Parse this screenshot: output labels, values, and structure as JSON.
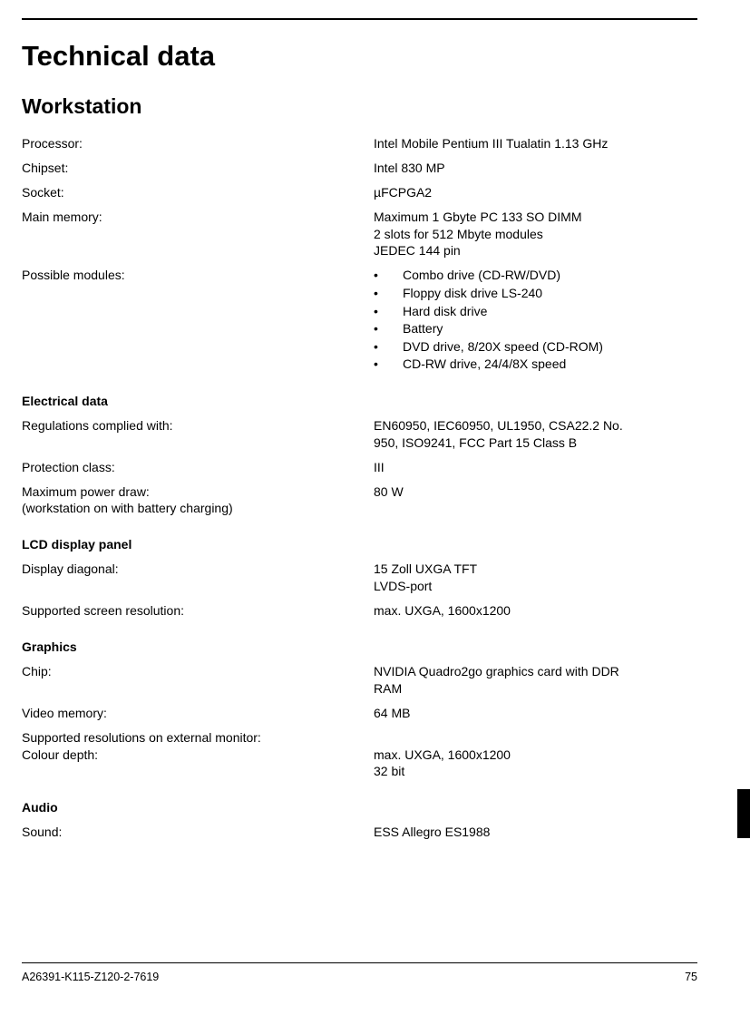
{
  "title": "Technical data",
  "subtitle": "Workstation",
  "workstation": {
    "processor": {
      "label": "Processor:",
      "value": "Intel Mobile Pentium III Tualatin 1.13 GHz"
    },
    "chipset": {
      "label": "Chipset:",
      "value": "Intel 830 MP"
    },
    "socket": {
      "label": "Socket:",
      "value": "µFCPGA2"
    },
    "main_memory": {
      "label": "Main memory:",
      "line1": "Maximum 1 Gbyte PC 133 SO DIMM",
      "line2": "2 slots for 512 Mbyte modules",
      "line3": "JEDEC 144 pin"
    },
    "possible_modules": {
      "label": "Possible modules:",
      "items": [
        "Combo drive (CD-RW/DVD)",
        "Floppy disk drive LS-240",
        "Hard disk drive",
        "Battery",
        "DVD drive, 8/20X speed (CD-ROM)",
        "CD-RW drive, 24/4/8X speed"
      ]
    }
  },
  "electrical": {
    "heading": "Electrical data",
    "regulations": {
      "label": "Regulations complied with:",
      "line1": "EN60950, IEC60950, UL1950, CSA22.2 No.",
      "line2": "950, ISO9241, FCC Part 15 Class B"
    },
    "protection": {
      "label": "Protection class:",
      "value": "III"
    },
    "power": {
      "label1": "Maximum power draw:",
      "label2": "(workstation on with battery charging)",
      "value": "80 W"
    }
  },
  "lcd": {
    "heading": "LCD display panel",
    "diagonal": {
      "label": "Display diagonal:",
      "line1": "15 Zoll UXGA TFT",
      "line2": "LVDS-port"
    },
    "resolution": {
      "label": "Supported screen resolution:",
      "value": "max. UXGA, 1600x1200"
    }
  },
  "graphics": {
    "heading": "Graphics",
    "chip": {
      "label": "Chip:",
      "line1": "NVIDIA Quadro2go graphics card with DDR",
      "line2": "RAM"
    },
    "vmem": {
      "label": "Video memory:",
      "value": "64 MB"
    },
    "ext": {
      "label1": "Supported resolutions on external monitor:",
      "label2": "Colour depth:",
      "line1": "max. UXGA, 1600x1200",
      "line2": "32 bit"
    }
  },
  "audio": {
    "heading": "Audio",
    "sound": {
      "label": "Sound:",
      "value": "ESS Allegro ES1988"
    }
  },
  "footer": {
    "doc_id": "A26391-K115-Z120-2-7619",
    "page_num": "75"
  }
}
